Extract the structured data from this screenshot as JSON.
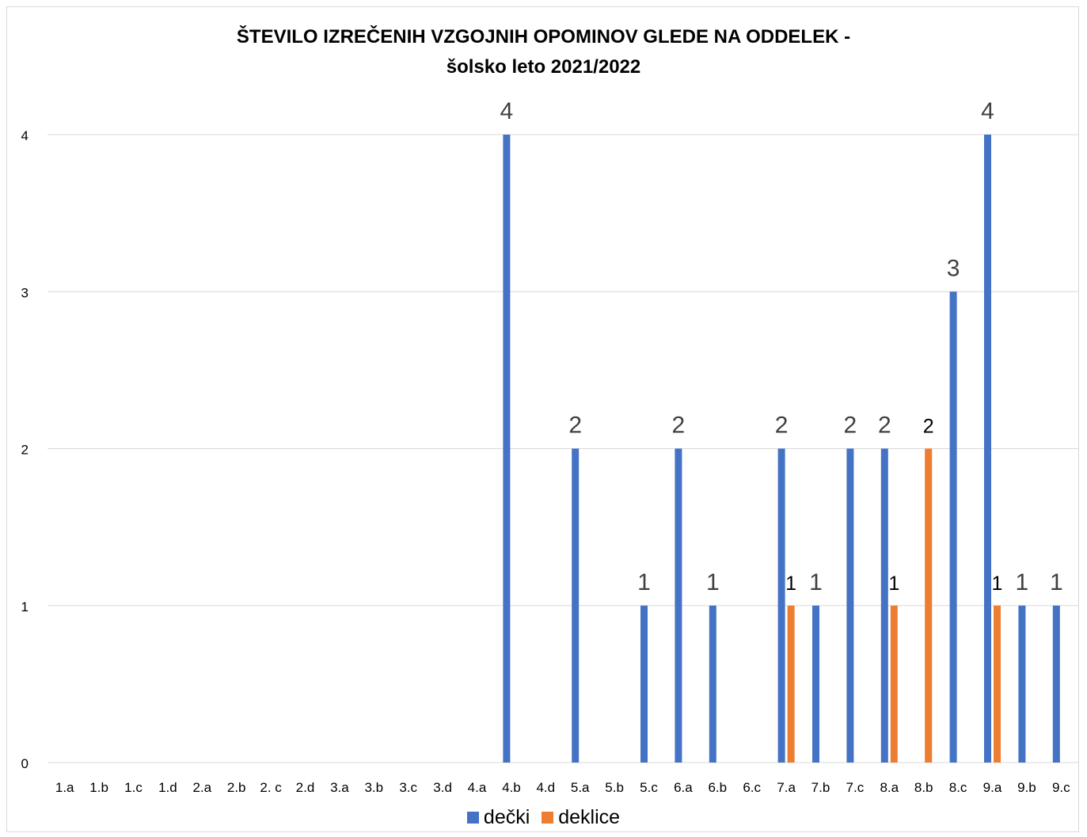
{
  "chart_data": {
    "type": "bar",
    "title": "ŠTEVILO IZREČENIH VZGOJNIH OPOMINOV GLEDE NA ODDELEK -",
    "subtitle": "šolsko leto 2021/2022",
    "xlabel": "",
    "ylabel": "",
    "ylim": [
      0,
      4
    ],
    "yticks": [
      0,
      1,
      2,
      3,
      4
    ],
    "grid": true,
    "legend_position": "bottom",
    "categories": [
      "1.a",
      "1.b",
      "1.c",
      "1.d",
      "2.a",
      "2.b",
      "2. c",
      "2.d",
      "3.a",
      "3.b",
      "3.c",
      "3.d",
      "4.a",
      "4.b",
      "4.d",
      "5.a",
      "5.b",
      "5.c",
      "6.a",
      "6.b",
      "6.c",
      "7.a",
      "7.b",
      "7.c",
      "8.a",
      "8.b",
      "8.c",
      "9.a",
      "9.b",
      "9.c"
    ],
    "series": [
      {
        "name": "dečki",
        "color": "#4472c4",
        "values": [
          null,
          null,
          null,
          null,
          null,
          null,
          null,
          null,
          null,
          null,
          null,
          null,
          null,
          4,
          null,
          2,
          null,
          1,
          2,
          1,
          null,
          2,
          1,
          2,
          2,
          null,
          3,
          4,
          1,
          1
        ]
      },
      {
        "name": "deklice",
        "color": "#ed7d31",
        "values": [
          null,
          null,
          null,
          null,
          null,
          null,
          null,
          null,
          null,
          null,
          null,
          null,
          null,
          null,
          null,
          null,
          null,
          null,
          null,
          null,
          null,
          1,
          null,
          null,
          1,
          2,
          null,
          1,
          null,
          null
        ]
      }
    ]
  }
}
